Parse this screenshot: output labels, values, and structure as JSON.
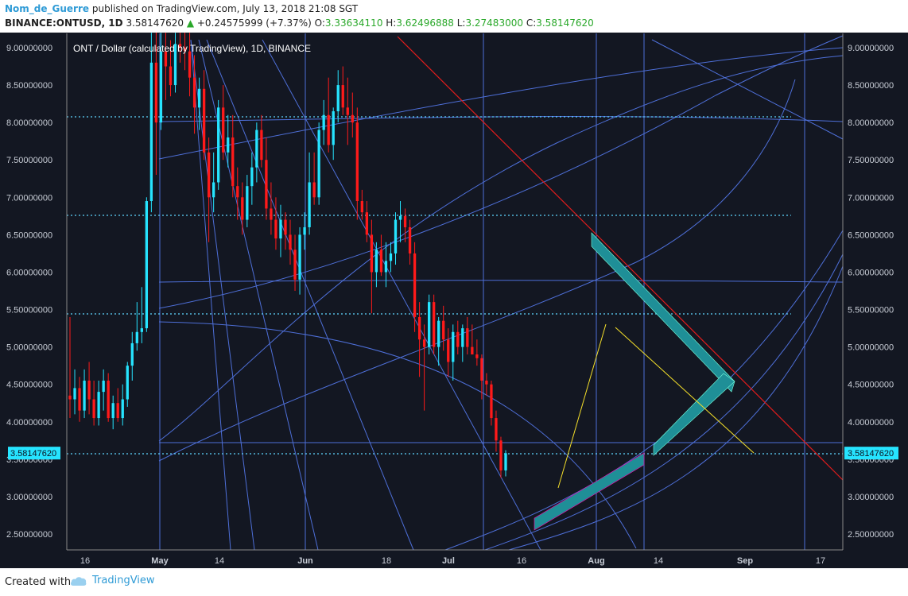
{
  "header": {
    "author": "Nom_de_Guerre",
    "published": "published on TradingView.com, July 13, 2018 21:08 SGT",
    "symbol": "BINANCE:ONTUSD, 1D",
    "last": "3.58147620",
    "change": "+0.24575999 (+7.37%)",
    "o_label": "O:",
    "o_value": "3.33634110",
    "h_label": "H:",
    "h_value": "3.62496888",
    "l_label": "L:",
    "l_value": "3.27483000",
    "c_label": "C:",
    "c_value": "3.58147620"
  },
  "footer": {
    "created_with": "Created with",
    "brand": "TradingView"
  },
  "colors": {
    "background": "#131722",
    "up": "#26e4ff",
    "down": "#ff1a1a",
    "grid": "#4e6fd8",
    "dotted": "#5fd6ff",
    "trendline": "#e01c1c",
    "arrow": "#1f8f97",
    "fib": "#f5e02a"
  },
  "chart_data": {
    "type": "candlestick",
    "title": "ONT / Dollar (calculated by TradingView), 1D, BINANCE",
    "ylim": [
      2.25,
      9.15
    ],
    "y_ticks": [
      "9.00000000",
      "8.50000000",
      "8.00000000",
      "7.50000000",
      "7.00000000",
      "6.50000000",
      "6.00000000",
      "5.50000000",
      "5.00000000",
      "4.50000000",
      "4.00000000",
      "3.50000000",
      "3.00000000",
      "2.50000000"
    ],
    "x_ticks": [
      "16",
      "May",
      "14",
      "Jun",
      "18",
      "Jul",
      "16",
      "Aug",
      "14",
      "Sep",
      "17"
    ],
    "last_price_label": "3.58147620",
    "candles": [
      {
        "o": 4.35,
        "h": 5.4,
        "l": 4.05,
        "c": 4.3
      },
      {
        "o": 4.3,
        "h": 4.7,
        "l": 4.1,
        "c": 4.45
      },
      {
        "o": 4.45,
        "h": 4.6,
        "l": 4.0,
        "c": 4.15
      },
      {
        "o": 4.15,
        "h": 4.7,
        "l": 4.05,
        "c": 4.55
      },
      {
        "o": 4.55,
        "h": 4.8,
        "l": 4.1,
        "c": 4.3
      },
      {
        "o": 4.3,
        "h": 4.55,
        "l": 3.95,
        "c": 4.05
      },
      {
        "o": 4.05,
        "h": 4.55,
        "l": 3.95,
        "c": 4.4
      },
      {
        "o": 4.4,
        "h": 4.7,
        "l": 4.15,
        "c": 4.55
      },
      {
        "o": 4.55,
        "h": 4.65,
        "l": 4.0,
        "c": 4.05
      },
      {
        "o": 4.05,
        "h": 4.35,
        "l": 3.9,
        "c": 4.25
      },
      {
        "o": 4.25,
        "h": 4.45,
        "l": 4.0,
        "c": 4.05
      },
      {
        "o": 4.05,
        "h": 4.5,
        "l": 3.95,
        "c": 4.3
      },
      {
        "o": 4.3,
        "h": 4.8,
        "l": 4.2,
        "c": 4.75
      },
      {
        "o": 4.75,
        "h": 5.2,
        "l": 4.55,
        "c": 5.05
      },
      {
        "o": 5.05,
        "h": 5.6,
        "l": 4.95,
        "c": 5.2
      },
      {
        "o": 5.2,
        "h": 5.8,
        "l": 5.05,
        "c": 5.25
      },
      {
        "o": 5.25,
        "h": 7.0,
        "l": 5.2,
        "c": 6.95
      },
      {
        "o": 6.95,
        "h": 9.2,
        "l": 6.8,
        "c": 8.8
      },
      {
        "o": 8.8,
        "h": 9.3,
        "l": 7.3,
        "c": 8.0
      },
      {
        "o": 8.0,
        "h": 9.2,
        "l": 7.9,
        "c": 8.95
      },
      {
        "o": 8.95,
        "h": 9.2,
        "l": 8.3,
        "c": 8.75
      },
      {
        "o": 8.75,
        "h": 9.1,
        "l": 8.35,
        "c": 8.5
      },
      {
        "o": 8.5,
        "h": 9.2,
        "l": 8.4,
        "c": 9.05
      },
      {
        "o": 9.05,
        "h": 9.3,
        "l": 8.8,
        "c": 9.0
      },
      {
        "o": 9.0,
        "h": 9.3,
        "l": 8.7,
        "c": 8.95
      },
      {
        "o": 8.95,
        "h": 9.2,
        "l": 8.35,
        "c": 8.6
      },
      {
        "o": 8.6,
        "h": 8.9,
        "l": 7.85,
        "c": 8.2
      },
      {
        "o": 8.2,
        "h": 8.6,
        "l": 7.9,
        "c": 8.45
      },
      {
        "o": 8.45,
        "h": 8.7,
        "l": 7.5,
        "c": 7.6
      },
      {
        "o": 7.6,
        "h": 7.8,
        "l": 6.4,
        "c": 7.0
      },
      {
        "o": 7.0,
        "h": 7.6,
        "l": 6.8,
        "c": 7.2
      },
      {
        "o": 7.2,
        "h": 8.3,
        "l": 7.1,
        "c": 8.2
      },
      {
        "o": 8.2,
        "h": 8.5,
        "l": 7.5,
        "c": 7.6
      },
      {
        "o": 7.6,
        "h": 8.1,
        "l": 7.4,
        "c": 7.8
      },
      {
        "o": 7.8,
        "h": 8.1,
        "l": 7.0,
        "c": 7.15
      },
      {
        "o": 7.15,
        "h": 7.4,
        "l": 6.7,
        "c": 7.0
      },
      {
        "o": 7.0,
        "h": 7.2,
        "l": 6.5,
        "c": 6.7
      },
      {
        "o": 6.7,
        "h": 7.3,
        "l": 6.6,
        "c": 7.15
      },
      {
        "o": 7.15,
        "h": 7.6,
        "l": 6.9,
        "c": 7.4
      },
      {
        "o": 7.4,
        "h": 8.0,
        "l": 7.2,
        "c": 7.9
      },
      {
        "o": 7.9,
        "h": 8.1,
        "l": 7.4,
        "c": 7.5
      },
      {
        "o": 7.5,
        "h": 7.8,
        "l": 6.7,
        "c": 6.85
      },
      {
        "o": 6.85,
        "h": 7.2,
        "l": 6.5,
        "c": 6.7
      },
      {
        "o": 6.7,
        "h": 7.0,
        "l": 6.3,
        "c": 6.45
      },
      {
        "o": 6.45,
        "h": 6.9,
        "l": 6.2,
        "c": 6.7
      },
      {
        "o": 6.7,
        "h": 6.8,
        "l": 6.3,
        "c": 6.5
      },
      {
        "o": 6.5,
        "h": 6.7,
        "l": 6.1,
        "c": 6.3
      },
      {
        "o": 6.3,
        "h": 6.5,
        "l": 5.75,
        "c": 5.9
      },
      {
        "o": 5.9,
        "h": 6.6,
        "l": 5.7,
        "c": 6.5
      },
      {
        "o": 6.5,
        "h": 6.8,
        "l": 6.3,
        "c": 6.6
      },
      {
        "o": 6.6,
        "h": 7.6,
        "l": 6.5,
        "c": 7.2
      },
      {
        "o": 7.2,
        "h": 7.6,
        "l": 6.9,
        "c": 7.0
      },
      {
        "o": 7.0,
        "h": 8.0,
        "l": 6.9,
        "c": 7.9
      },
      {
        "o": 7.9,
        "h": 8.3,
        "l": 7.7,
        "c": 8.1
      },
      {
        "o": 8.1,
        "h": 8.6,
        "l": 7.6,
        "c": 7.7
      },
      {
        "o": 7.7,
        "h": 8.2,
        "l": 7.5,
        "c": 8.15
      },
      {
        "o": 8.15,
        "h": 8.7,
        "l": 8.0,
        "c": 8.5
      },
      {
        "o": 8.5,
        "h": 8.75,
        "l": 8.1,
        "c": 8.2
      },
      {
        "o": 8.2,
        "h": 8.6,
        "l": 7.7,
        "c": 8.1
      },
      {
        "o": 8.1,
        "h": 8.4,
        "l": 7.8,
        "c": 8.0
      },
      {
        "o": 8.0,
        "h": 8.2,
        "l": 6.7,
        "c": 6.95
      },
      {
        "o": 6.95,
        "h": 7.1,
        "l": 6.7,
        "c": 6.8
      },
      {
        "o": 6.8,
        "h": 6.95,
        "l": 6.4,
        "c": 6.5
      },
      {
        "o": 6.5,
        "h": 6.7,
        "l": 5.45,
        "c": 6.0
      },
      {
        "o": 6.0,
        "h": 6.4,
        "l": 5.8,
        "c": 6.3
      },
      {
        "o": 6.3,
        "h": 6.5,
        "l": 5.95,
        "c": 6.0
      },
      {
        "o": 6.0,
        "h": 6.4,
        "l": 5.8,
        "c": 6.15
      },
      {
        "o": 6.15,
        "h": 6.4,
        "l": 6.0,
        "c": 6.25
      },
      {
        "o": 6.25,
        "h": 6.8,
        "l": 6.1,
        "c": 6.7
      },
      {
        "o": 6.7,
        "h": 6.95,
        "l": 6.4,
        "c": 6.75
      },
      {
        "o": 6.75,
        "h": 6.85,
        "l": 6.4,
        "c": 6.6
      },
      {
        "o": 6.6,
        "h": 6.7,
        "l": 6.1,
        "c": 6.25
      },
      {
        "o": 6.25,
        "h": 6.4,
        "l": 5.2,
        "c": 5.4
      },
      {
        "o": 5.4,
        "h": 5.6,
        "l": 4.6,
        "c": 5.1
      },
      {
        "o": 5.1,
        "h": 5.3,
        "l": 4.15,
        "c": 5.0
      },
      {
        "o": 5.0,
        "h": 5.7,
        "l": 4.9,
        "c": 5.6
      },
      {
        "o": 5.6,
        "h": 5.7,
        "l": 4.9,
        "c": 5.0
      },
      {
        "o": 5.0,
        "h": 5.4,
        "l": 4.75,
        "c": 5.35
      },
      {
        "o": 5.35,
        "h": 5.55,
        "l": 4.95,
        "c": 5.1
      },
      {
        "o": 5.1,
        "h": 5.25,
        "l": 4.6,
        "c": 4.8
      },
      {
        "o": 4.8,
        "h": 5.3,
        "l": 4.55,
        "c": 5.2
      },
      {
        "o": 5.2,
        "h": 5.35,
        "l": 4.9,
        "c": 5.0
      },
      {
        "o": 5.0,
        "h": 5.3,
        "l": 4.8,
        "c": 5.25
      },
      {
        "o": 5.25,
        "h": 5.4,
        "l": 4.9,
        "c": 5.0
      },
      {
        "o": 5.0,
        "h": 5.3,
        "l": 4.9,
        "c": 4.9
      },
      {
        "o": 4.9,
        "h": 5.1,
        "l": 4.75,
        "c": 4.85
      },
      {
        "o": 4.85,
        "h": 4.9,
        "l": 4.3,
        "c": 4.55
      },
      {
        "o": 4.55,
        "h": 4.65,
        "l": 4.35,
        "c": 4.5
      },
      {
        "o": 4.5,
        "h": 4.55,
        "l": 3.95,
        "c": 4.05
      },
      {
        "o": 4.05,
        "h": 4.15,
        "l": 3.6,
        "c": 3.75
      },
      {
        "o": 3.75,
        "h": 3.8,
        "l": 3.25,
        "c": 3.35
      },
      {
        "o": 3.35,
        "h": 3.62,
        "l": 3.27,
        "c": 3.58
      }
    ]
  }
}
